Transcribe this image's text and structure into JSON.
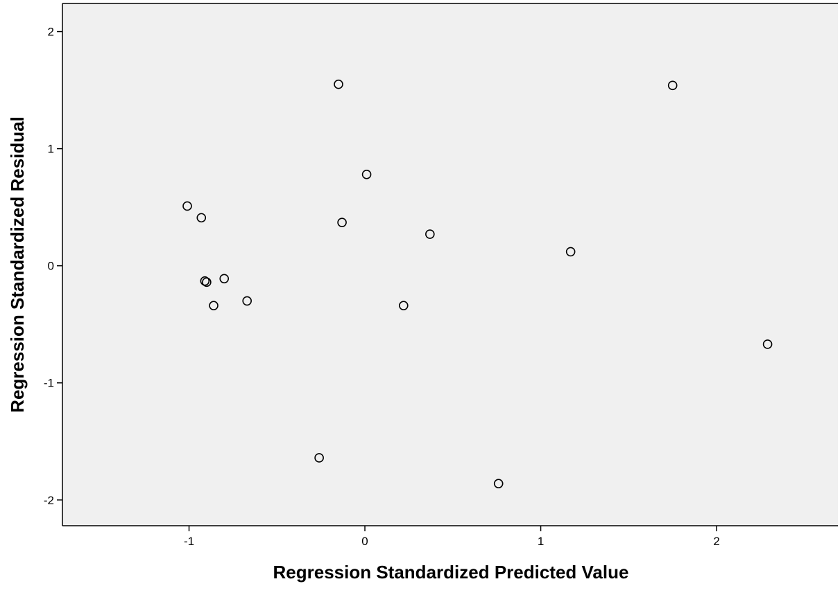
{
  "chart_data": {
    "type": "scatter",
    "x_label": "Regression Standardized Predicted Value",
    "y_label": "Regression Standardized Residual",
    "x": [
      -1.01,
      -0.93,
      -0.91,
      -0.9,
      -0.8,
      -0.86,
      -0.67,
      -0.15,
      -0.13,
      0.01,
      0.37,
      0.22,
      -0.26,
      0.76,
      1.17,
      1.75,
      2.29
    ],
    "values": [
      0.51,
      0.41,
      -0.13,
      -0.14,
      -0.11,
      -0.34,
      -0.3,
      1.55,
      0.37,
      0.78,
      0.27,
      -0.34,
      -1.64,
      -1.86,
      0.12,
      1.54,
      -0.67
    ],
    "color": "#000000",
    "background": "#f0f0f0",
    "xlim": [
      -1.72,
      2.69
    ],
    "xticks": [
      -1,
      0,
      1,
      2
    ],
    "ylim": [
      -2.22,
      2.24
    ],
    "yticks": [
      -2,
      -1,
      0,
      1,
      2
    ]
  }
}
